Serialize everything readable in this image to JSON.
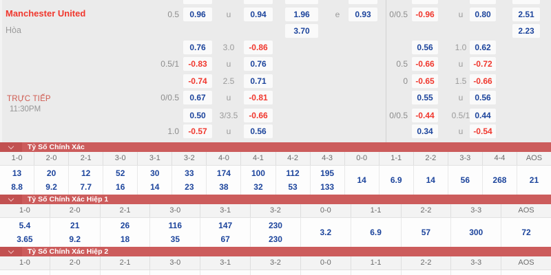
{
  "colors": {
    "banner_red": "#cc5c5c",
    "banner_chevron_box": "#c25151",
    "odds_blue": "#1c449c",
    "odds_negative_red": "#f0372d",
    "team_red": "#f0372d",
    "label_gray": "#8c8c8c",
    "background": "#ebebeb"
  },
  "top": {
    "team": "Manchester United",
    "draw_label": "Hòa",
    "live_label": "TRỰC TIẾP",
    "time": "11:30PM",
    "rows": [
      {
        "cells": [
          {
            "slot": "odd1",
            "stub": true
          },
          {
            "slot": "odd2",
            "stub": true
          },
          {
            "slot": "x1",
            "stub": true
          },
          {
            "slot": "x2",
            "stub": true
          },
          {
            "slot": "odd3",
            "stub": true
          },
          {
            "slot": "odd4",
            "stub": true
          },
          {
            "slot": "extra",
            "stub": true
          }
        ]
      },
      {
        "cells": [
          {
            "slot": "hcp1",
            "label": "0.5"
          },
          {
            "slot": "odd1",
            "price": "0.96"
          },
          {
            "slot": "ou1",
            "label": "u"
          },
          {
            "slot": "odd2",
            "price": "0.94"
          },
          {
            "slot": "x1",
            "price": "1.96"
          },
          {
            "slot": "xmid",
            "label": "e"
          },
          {
            "slot": "x2",
            "price": "0.93"
          },
          {
            "slot": "hcp2",
            "label": "0/0.5"
          },
          {
            "slot": "odd3",
            "price": "-0.96"
          },
          {
            "slot": "ou2",
            "label": "u"
          },
          {
            "slot": "odd4",
            "price": "0.80"
          },
          {
            "slot": "extra",
            "price": "2.51"
          }
        ]
      },
      {
        "cells": [
          {
            "slot": "x1",
            "price": "3.70"
          },
          {
            "slot": "extra",
            "price": "2.23"
          }
        ]
      },
      {
        "cells": [
          {
            "slot": "odd1",
            "price": "0.76"
          },
          {
            "slot": "ou1",
            "label": "3.0"
          },
          {
            "slot": "odd2",
            "price": "-0.86"
          },
          {
            "slot": "odd3",
            "price": "0.56"
          },
          {
            "slot": "ou2",
            "label": "1.0"
          },
          {
            "slot": "odd4",
            "price": "0.62"
          }
        ]
      },
      {
        "cells": [
          {
            "slot": "hcp1",
            "label": "0.5/1"
          },
          {
            "slot": "odd1",
            "price": "-0.83"
          },
          {
            "slot": "ou1",
            "label": "u"
          },
          {
            "slot": "odd2",
            "price": "0.76"
          },
          {
            "slot": "hcp2",
            "label": "0.5"
          },
          {
            "slot": "odd3",
            "price": "-0.66"
          },
          {
            "slot": "ou2",
            "label": "u"
          },
          {
            "slot": "odd4",
            "price": "-0.72"
          }
        ]
      },
      {
        "cells": [
          {
            "slot": "odd1",
            "price": "-0.74"
          },
          {
            "slot": "ou1",
            "label": "2.5"
          },
          {
            "slot": "odd2",
            "price": "0.71"
          },
          {
            "slot": "hcp2",
            "label": "0"
          },
          {
            "slot": "odd3",
            "price": "-0.65"
          },
          {
            "slot": "ou2",
            "label": "1.5"
          },
          {
            "slot": "odd4",
            "price": "-0.66"
          }
        ]
      },
      {
        "cells": [
          {
            "slot": "hcp1",
            "label": "0/0.5"
          },
          {
            "slot": "odd1",
            "price": "0.67"
          },
          {
            "slot": "ou1",
            "label": "u"
          },
          {
            "slot": "odd2",
            "price": "-0.81"
          },
          {
            "slot": "odd3",
            "price": "0.55"
          },
          {
            "slot": "ou2",
            "label": "u"
          },
          {
            "slot": "odd4",
            "price": "0.56"
          }
        ]
      },
      {
        "cells": [
          {
            "slot": "odd1",
            "price": "0.50"
          },
          {
            "slot": "ou1",
            "label": "3/3.5"
          },
          {
            "slot": "odd2",
            "price": "-0.66"
          },
          {
            "slot": "hcp2",
            "label": "0/0.5"
          },
          {
            "slot": "odd3",
            "price": "-0.44"
          },
          {
            "slot": "ou2",
            "label": "0.5/1"
          },
          {
            "slot": "odd4",
            "price": "0.44"
          }
        ]
      },
      {
        "cells": [
          {
            "slot": "hcp1",
            "label": "1.0"
          },
          {
            "slot": "odd1",
            "price": "-0.57"
          },
          {
            "slot": "ou1",
            "label": "u"
          },
          {
            "slot": "odd2",
            "price": "0.56"
          },
          {
            "slot": "odd3",
            "price": "0.34"
          },
          {
            "slot": "ou2",
            "label": "u"
          },
          {
            "slot": "odd4",
            "price": "-0.54"
          }
        ]
      }
    ]
  },
  "tables": [
    {
      "title": "Tỷ Số Chính Xác",
      "truncated": false,
      "columns": [
        {
          "score": "1-0",
          "home": "13",
          "away": "8.8"
        },
        {
          "score": "2-0",
          "home": "20",
          "away": "9.2"
        },
        {
          "score": "2-1",
          "home": "12",
          "away": "7.7"
        },
        {
          "score": "3-0",
          "home": "52",
          "away": "16"
        },
        {
          "score": "3-1",
          "home": "30",
          "away": "14"
        },
        {
          "score": "3-2",
          "home": "33",
          "away": "23"
        },
        {
          "score": "4-0",
          "home": "174",
          "away": "38"
        },
        {
          "score": "4-1",
          "home": "100",
          "away": "32"
        },
        {
          "score": "4-2",
          "home": "112",
          "away": "53"
        },
        {
          "score": "4-3",
          "home": "195",
          "away": "133"
        },
        {
          "score": "0-0",
          "draw": "14"
        },
        {
          "score": "1-1",
          "draw": "6.9"
        },
        {
          "score": "2-2",
          "draw": "14"
        },
        {
          "score": "3-3",
          "draw": "56"
        },
        {
          "score": "4-4",
          "draw": "268"
        },
        {
          "score": "AOS",
          "draw": "21"
        }
      ]
    },
    {
      "title": "Tỷ Số Chính Xác Hiệp 1",
      "truncated": false,
      "columns": [
        {
          "score": "1-0",
          "home": "5.4",
          "away": "3.65"
        },
        {
          "score": "2-0",
          "home": "21",
          "away": "9.2"
        },
        {
          "score": "2-1",
          "home": "26",
          "away": "18"
        },
        {
          "score": "3-0",
          "home": "116",
          "away": "35"
        },
        {
          "score": "3-1",
          "home": "147",
          "away": "67"
        },
        {
          "score": "3-2",
          "home": "230",
          "away": "230"
        },
        {
          "score": "0-0",
          "draw": "3.2"
        },
        {
          "score": "1-1",
          "draw": "6.9"
        },
        {
          "score": "2-2",
          "draw": "57"
        },
        {
          "score": "3-3",
          "draw": "300"
        },
        {
          "score": "AOS",
          "draw": "72"
        }
      ]
    },
    {
      "title": "Tỷ Số Chính Xác Hiệp 2",
      "truncated": true,
      "columns": [
        {
          "score": "1-0"
        },
        {
          "score": "2-0"
        },
        {
          "score": "2-1"
        },
        {
          "score": "3-0"
        },
        {
          "score": "3-1"
        },
        {
          "score": "3-2"
        },
        {
          "score": "0-0"
        },
        {
          "score": "1-1"
        },
        {
          "score": "2-2"
        },
        {
          "score": "3-3"
        },
        {
          "score": "AOS"
        }
      ]
    }
  ]
}
